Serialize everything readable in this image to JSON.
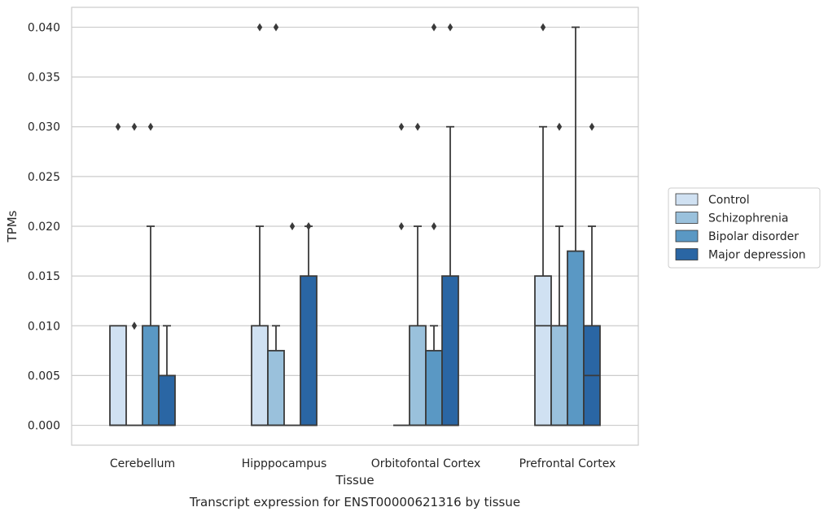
{
  "chart_data": {
    "type": "box",
    "title": "Transcript expression for ENST00000621316 by tissue",
    "xlabel": "Tissue",
    "ylabel": "TPMs",
    "ylim": [
      -0.002,
      0.042
    ],
    "yticks": [
      "0.000",
      "0.005",
      "0.010",
      "0.015",
      "0.020",
      "0.025",
      "0.030",
      "0.035",
      "0.040"
    ],
    "categories": [
      "Cerebellum",
      "Hipppocampus",
      "Orbitofontal Cortex",
      "Prefrontal Cortex"
    ],
    "grid": "horizontal",
    "legend_position": "right",
    "series": [
      {
        "name": "Control",
        "color": "#d0e1f2",
        "boxes": [
          {
            "q1": 0.0,
            "median": 0.0,
            "q3": 0.01,
            "whisker_low": 0.0,
            "whisker_high": 0.01,
            "outliers": [
              0.03
            ]
          },
          {
            "q1": 0.0,
            "median": 0.0,
            "q3": 0.01,
            "whisker_low": 0.0,
            "whisker_high": 0.02,
            "outliers": [
              0.04
            ]
          },
          {
            "q1": 0.0,
            "median": 0.0,
            "q3": 0.0,
            "whisker_low": 0.0,
            "whisker_high": 0.0,
            "outliers": [
              0.02,
              0.03
            ]
          },
          {
            "q1": 0.0,
            "median": 0.01,
            "q3": 0.015,
            "whisker_low": 0.0,
            "whisker_high": 0.03,
            "outliers": [
              0.04
            ]
          }
        ]
      },
      {
        "name": "Schizophrenia",
        "color": "#9ac1dc",
        "boxes": [
          {
            "q1": 0.0,
            "median": 0.0,
            "q3": 0.0,
            "whisker_low": 0.0,
            "whisker_high": 0.0,
            "outliers": [
              0.01,
              0.03
            ]
          },
          {
            "q1": 0.0,
            "median": 0.0,
            "q3": 0.0075,
            "whisker_low": 0.0,
            "whisker_high": 0.01,
            "outliers": [
              0.04
            ]
          },
          {
            "q1": 0.0,
            "median": 0.0,
            "q3": 0.01,
            "whisker_low": 0.0,
            "whisker_high": 0.02,
            "outliers": [
              0.03
            ]
          },
          {
            "q1": 0.0,
            "median": 0.0,
            "q3": 0.01,
            "whisker_low": 0.0,
            "whisker_high": 0.02,
            "outliers": [
              0.03
            ]
          }
        ]
      },
      {
        "name": "Bipolar disorder",
        "color": "#5a98c4",
        "boxes": [
          {
            "q1": 0.0,
            "median": 0.0,
            "q3": 0.01,
            "whisker_low": 0.0,
            "whisker_high": 0.02,
            "outliers": [
              0.03
            ]
          },
          {
            "q1": 0.0,
            "median": 0.0,
            "q3": 0.0,
            "whisker_low": 0.0,
            "whisker_high": 0.0,
            "outliers": [
              0.02
            ]
          },
          {
            "q1": 0.0,
            "median": 0.0,
            "q3": 0.0075,
            "whisker_low": 0.0,
            "whisker_high": 0.01,
            "outliers": [
              0.02,
              0.04
            ]
          },
          {
            "q1": 0.0,
            "median": 0.0,
            "q3": 0.0175,
            "whisker_low": 0.0,
            "whisker_high": 0.04,
            "outliers": []
          }
        ]
      },
      {
        "name": "Major depression",
        "color": "#2a66a4",
        "boxes": [
          {
            "q1": 0.0,
            "median": 0.0,
            "q3": 0.005,
            "whisker_low": 0.0,
            "whisker_high": 0.01,
            "outliers": []
          },
          {
            "q1": 0.0,
            "median": 0.0,
            "q3": 0.015,
            "whisker_low": 0.0,
            "whisker_high": 0.02,
            "outliers": [
              0.02
            ]
          },
          {
            "q1": 0.0,
            "median": 0.0,
            "q3": 0.015,
            "whisker_low": 0.0,
            "whisker_high": 0.03,
            "outliers": [
              0.04
            ]
          },
          {
            "q1": 0.0,
            "median": 0.005,
            "q3": 0.01,
            "whisker_low": 0.0,
            "whisker_high": 0.02,
            "outliers": [
              0.03
            ]
          }
        ]
      }
    ]
  }
}
